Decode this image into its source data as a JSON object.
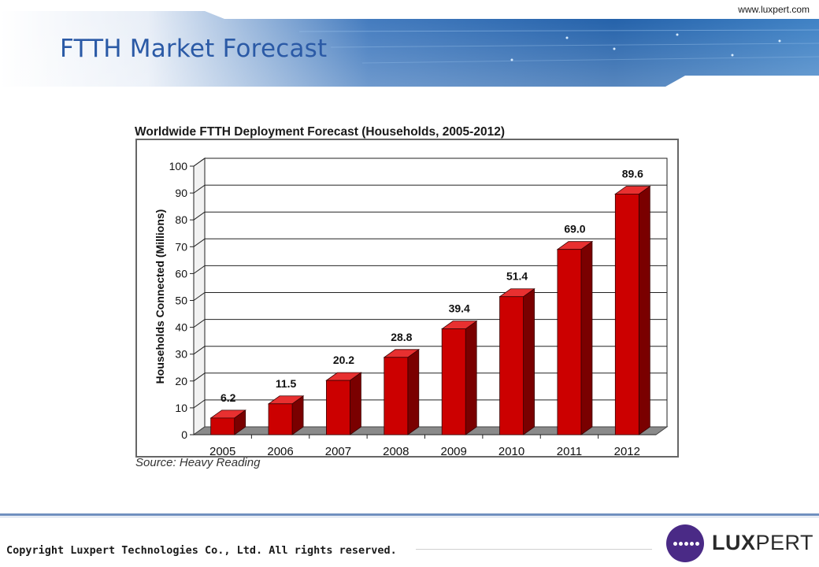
{
  "header": {
    "title": "FTTH Market Forecast",
    "url": "www.luxpert.com"
  },
  "footer": {
    "copyright": "Copyright Luxpert Technologies Co., Ltd. All rights reserved.",
    "logo_text_bold": "LUX",
    "logo_text_light": "PERT"
  },
  "colors": {
    "title_blue": "#2b5aa6",
    "bar_front": "#cc0000",
    "bar_side": "#7a0000",
    "bar_top": "#e83030",
    "logo_purple": "#4a2a86"
  },
  "chart_data": {
    "type": "bar",
    "title": "Worldwide FTTH Deployment Forecast (Households, 2005-2012)",
    "xlabel": "",
    "ylabel": "Households Connected (Millions)",
    "categories": [
      "2005",
      "2006",
      "2007",
      "2008",
      "2009",
      "2010",
      "2011",
      "2012"
    ],
    "values": [
      6.2,
      11.5,
      20.2,
      28.8,
      39.4,
      51.4,
      69.0,
      89.6
    ],
    "value_labels": [
      "6.2",
      "11.5",
      "20.2",
      "28.8",
      "39.4",
      "51.4",
      "69.0",
      "89.6"
    ],
    "ylim": [
      0,
      100
    ],
    "yticks": [
      "0",
      "10",
      "20",
      "30",
      "40",
      "50",
      "60",
      "70",
      "80",
      "90",
      "100"
    ],
    "grid": true,
    "style": "3d",
    "source": "Source: Heavy Reading"
  }
}
